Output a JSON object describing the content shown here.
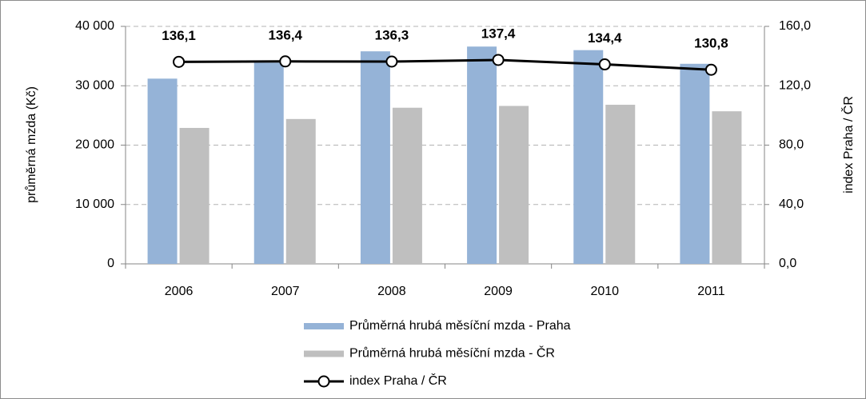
{
  "chart_data": {
    "type": "bar",
    "categories": [
      "2006",
      "2007",
      "2008",
      "2009",
      "2010",
      "2011"
    ],
    "series": [
      {
        "name": "Průměrná hrubá měsíční mzda - Praha",
        "color": "#95b3d7",
        "values": [
          31200,
          33900,
          35800,
          36600,
          36000,
          33700
        ]
      },
      {
        "name": "Průměrná hrubá měsíční mzda - ČR",
        "color": "#bfbfbf",
        "values": [
          22900,
          24400,
          26300,
          26600,
          26800,
          25700
        ]
      },
      {
        "name": "index Praha / ČR",
        "type": "line",
        "axis": "y2",
        "color": "#000000",
        "values": [
          136.1,
          136.4,
          136.3,
          137.4,
          134.4,
          130.8
        ],
        "value_labels": [
          "136,1",
          "136,4",
          "136,3",
          "137,4",
          "134,4",
          "130,8"
        ]
      }
    ],
    "ylabel": "průměrná mzda (Kč)",
    "y2label": "index Praha / ČR",
    "ylim": [
      0,
      40000
    ],
    "yticks": [
      0,
      {
        "value": 10000,
        "label": "10 000"
      },
      {
        "value": 20000,
        "label": "20 000"
      },
      {
        "value": 30000,
        "label": "30 000"
      },
      {
        "value": 40000,
        "label": "40 000"
      }
    ],
    "y2lim": [
      0,
      160
    ],
    "y2ticks": [
      {
        "value": 0,
        "label": "0,0"
      },
      {
        "value": 40,
        "label": "40,0"
      },
      {
        "value": 80,
        "label": "80,0"
      },
      {
        "value": 120,
        "label": "120,0"
      },
      {
        "value": 160,
        "label": "160,0"
      }
    ],
    "grid": true,
    "legend": "bottom"
  }
}
